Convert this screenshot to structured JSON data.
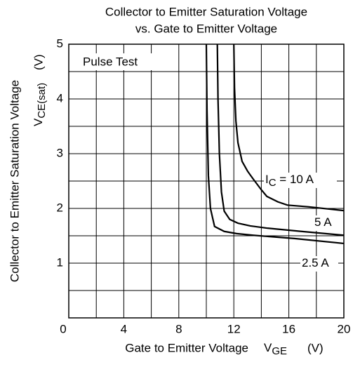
{
  "chart_data": {
    "type": "line",
    "title": [
      "Collector to Emitter Saturation Voltage",
      "vs. Gate to Emitter Voltage"
    ],
    "x_label": {
      "text": "Gate to Emitter Voltage",
      "symbol": "V",
      "sub": "GE",
      "unit": "(V)"
    },
    "y_label": {
      "text": "Collector to Emitter Saturation Voltage",
      "symbol": "V",
      "sub": "CE(sat)",
      "unit": "(V)"
    },
    "annotation": "Pulse Test",
    "curve_label_prefix": {
      "symbol": "I",
      "sub": "C",
      "eq": " = "
    },
    "xlim": [
      0,
      20
    ],
    "ylim": [
      0,
      5
    ],
    "xticks": [
      0,
      4,
      8,
      12,
      16,
      20
    ],
    "xminor": [
      2,
      6,
      10,
      14,
      18
    ],
    "yticks": [
      1,
      2,
      3,
      4,
      5
    ],
    "yminor": [
      0.5,
      1.5,
      2.5,
      3.5,
      4.5
    ],
    "grid": true,
    "series": [
      {
        "name": "10 A",
        "color": "#000000",
        "x": [
          12.0,
          12.05,
          12.15,
          12.3,
          12.6,
          13.0,
          13.4,
          14.0,
          14.4,
          15.2,
          15.9,
          17.4,
          20
        ],
        "values": [
          5,
          4.2,
          3.6,
          3.2,
          2.86,
          2.68,
          2.54,
          2.34,
          2.22,
          2.12,
          2.06,
          2.03,
          1.96
        ]
      },
      {
        "name": "5 A",
        "color": "#000000",
        "x": [
          10.8,
          10.85,
          10.95,
          11.1,
          11.3,
          11.7,
          12.3,
          13.2,
          14.4,
          16.9,
          20
        ],
        "values": [
          5,
          4,
          3,
          2.3,
          1.95,
          1.8,
          1.73,
          1.68,
          1.64,
          1.58,
          1.51
        ]
      },
      {
        "name": "2.5 A",
        "color": "#000000",
        "x": [
          10.0,
          10.05,
          10.15,
          10.3,
          10.6,
          11.3,
          12.2,
          13.4,
          16.4,
          20
        ],
        "values": [
          5,
          3.8,
          2.6,
          2.0,
          1.67,
          1.58,
          1.54,
          1.51,
          1.45,
          1.36
        ]
      }
    ]
  }
}
